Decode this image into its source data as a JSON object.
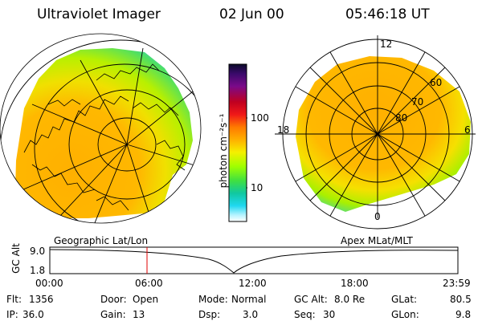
{
  "header": {
    "title": "Ultraviolet Imager",
    "date": "02 Jun 00",
    "time": "05:46:18 UT"
  },
  "colorbar": {
    "unit_label": "photon cm⁻²s⁻¹",
    "ticks": [
      "100",
      "10"
    ],
    "colors": [
      "#0b0b2a",
      "#3a0a6a",
      "#7a0a8a",
      "#c00020",
      "#f01818",
      "#ff7a00",
      "#ffb000",
      "#f5f000",
      "#a0ff00",
      "#40e040",
      "#10c8a0",
      "#20d8f0",
      "#b8f4ff",
      "#ffffff"
    ]
  },
  "left_map": {
    "caption": "Geographic Lat/Lon"
  },
  "right_map": {
    "caption": "Apex MLat/MLT",
    "mlt_labels": {
      "top": "12",
      "left": "18",
      "right": "6",
      "bottom": "0"
    },
    "lat_labels": [
      "60",
      "70",
      "80"
    ]
  },
  "altitude_plot": {
    "y_title": "GC Alt",
    "y_ticks": [
      "9.0",
      "1.8"
    ],
    "x_ticks": [
      "00:00",
      "06:00",
      "12:00",
      "18:00",
      "23:59"
    ],
    "current_marker_time": "05:46",
    "line_color": "#000000",
    "marker_color": "#e00000"
  },
  "status": {
    "flt": {
      "label": "Flt:",
      "value": "1356"
    },
    "ip": {
      "label": "IP:",
      "value": "36.0"
    },
    "door": {
      "label": "Door:",
      "value": "Open"
    },
    "gain": {
      "label": "Gain:",
      "value": "13"
    },
    "mode": {
      "label": "Mode:",
      "value": "Normal"
    },
    "dsp": {
      "label": "Dsp:",
      "value": "3.0"
    },
    "gcalt": {
      "label": "GC Alt:",
      "value": "8.0 Re"
    },
    "seq": {
      "label": "Seq:",
      "value": "30"
    },
    "glat": {
      "label": "GLat:",
      "value": "80.5"
    },
    "glon": {
      "label": "GLon:",
      "value": "9.8"
    }
  }
}
